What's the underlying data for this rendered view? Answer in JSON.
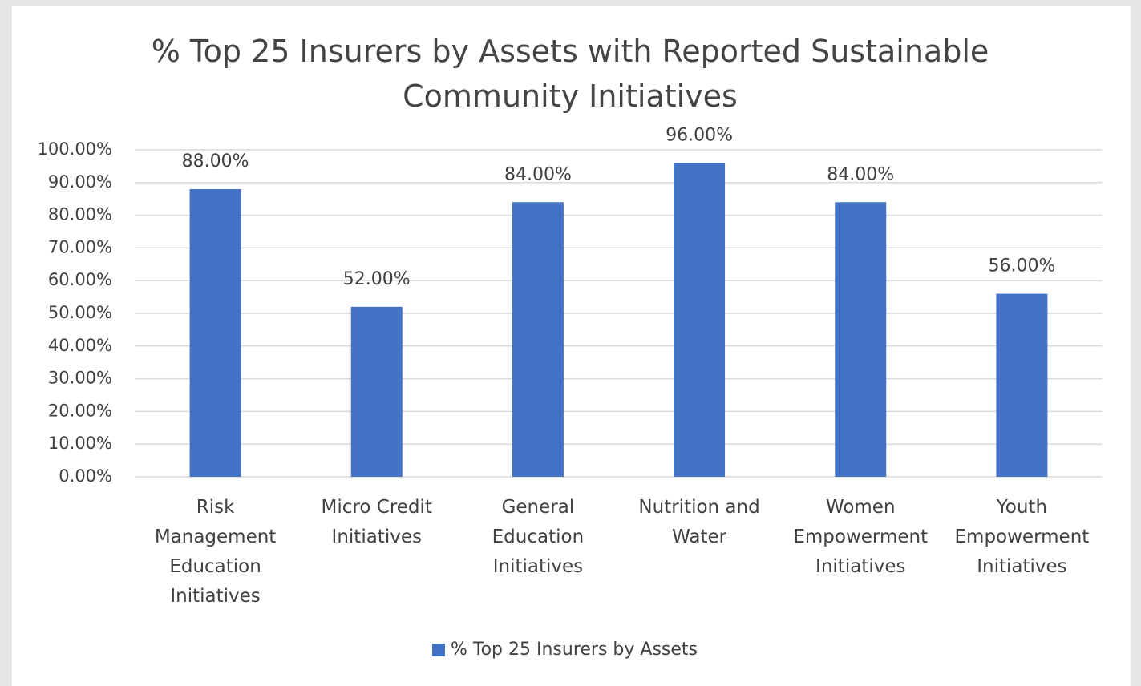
{
  "chart_data": {
    "type": "bar",
    "title": "% Top 25 Insurers by Assets with Reported Sustainable Community Initiatives",
    "categories": [
      "Risk Management Education Initiatives",
      "Micro Credit Initiatives",
      "General Education Initiatives",
      "Nutrition and Water",
      "Women Empowerment Initiatives",
      "Youth Empowerment Initiatives"
    ],
    "series": [
      {
        "name": "% Top 25 Insurers by Assets",
        "color": "#4472c4",
        "values": [
          88,
          52,
          84,
          96,
          84,
          56
        ],
        "value_labels": [
          "88.00%",
          "52.00%",
          "84.00%",
          "96.00%",
          "84.00%",
          "56.00%"
        ]
      }
    ],
    "ylim": [
      0,
      100
    ],
    "yticks": [
      {
        "value": 0,
        "label": "0.00%"
      },
      {
        "value": 10,
        "label": "10.00%"
      },
      {
        "value": 20,
        "label": "20.00%"
      },
      {
        "value": 30,
        "label": "30.00%"
      },
      {
        "value": 40,
        "label": "40.00%"
      },
      {
        "value": 50,
        "label": "50.00%"
      },
      {
        "value": 60,
        "label": "60.00%"
      },
      {
        "value": 70,
        "label": "70.00%"
      },
      {
        "value": 80,
        "label": "80.00%"
      },
      {
        "value": 90,
        "label": "90.00%"
      },
      {
        "value": 100,
        "label": "100.00%"
      }
    ],
    "grid": true,
    "legend": "bottom"
  }
}
